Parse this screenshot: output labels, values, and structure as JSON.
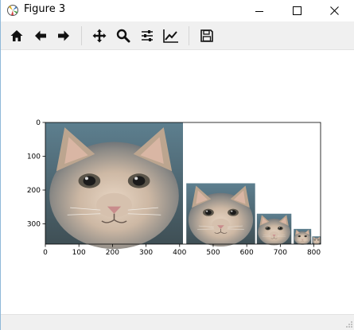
{
  "window": {
    "title": "Figure 3",
    "app_icon": "matplotlib-figure-icon",
    "controls": {
      "minimize_icon": "minimize-icon",
      "maximize_icon": "maximize-icon",
      "close_icon": "close-icon"
    }
  },
  "toolbar": {
    "buttons": [
      {
        "id": "home",
        "icon": "home-icon"
      },
      {
        "id": "back",
        "icon": "back-arrow-icon"
      },
      {
        "id": "forward",
        "icon": "forward-arrow-icon"
      },
      {
        "id": "pan",
        "icon": "pan-move-icon"
      },
      {
        "id": "zoom",
        "icon": "zoom-magnifier-icon"
      },
      {
        "id": "subplots",
        "icon": "configure-subplots-icon"
      },
      {
        "id": "edit",
        "icon": "edit-axis-icon"
      },
      {
        "id": "save",
        "icon": "save-floppy-icon"
      }
    ]
  },
  "statusbar": {
    "text": ""
  },
  "chart_data": {
    "type": "image",
    "title": "",
    "xlabel": "",
    "ylabel": "",
    "xlim": [
      0,
      820
    ],
    "ylim": [
      360,
      0
    ],
    "x_ticks": [
      0,
      100,
      200,
      300,
      400,
      500,
      600,
      700,
      800
    ],
    "y_ticks": [
      0,
      100,
      200,
      300
    ],
    "pyramid_levels": [
      {
        "x": 0,
        "y": 0,
        "w": 410,
        "h": 360
      },
      {
        "x": 420,
        "y": 180,
        "w": 205,
        "h": 180
      },
      {
        "x": 630,
        "y": 270,
        "w": 103,
        "h": 90
      },
      {
        "x": 740,
        "y": 315,
        "w": 52,
        "h": 45
      },
      {
        "x": 795,
        "y": 337,
        "w": 26,
        "h": 23
      }
    ]
  }
}
